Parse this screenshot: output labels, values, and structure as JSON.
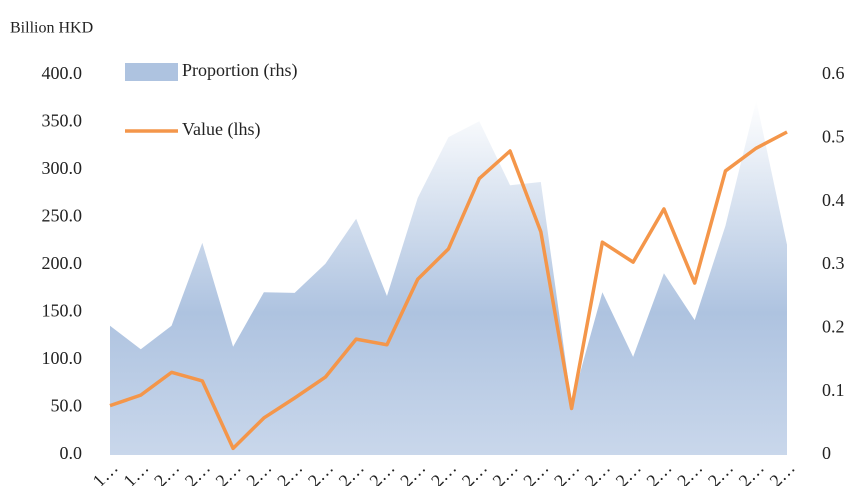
{
  "chart_data": {
    "type": "area_line",
    "ylabel": "Billion HKD",
    "categories": [
      "1…",
      "1…",
      "2…",
      "2…",
      "2…",
      "2…",
      "2…",
      "2…",
      "2…",
      "2…",
      "2…",
      "2…",
      "2…",
      "2…",
      "2…",
      "2…",
      "2…",
      "2…",
      "2…",
      "2…",
      "2…",
      "2…",
      "2…"
    ],
    "series": [
      {
        "name": "Proportion (rhs)",
        "kind": "area",
        "axis": "y2",
        "color": "#aec3e0",
        "values": [
          0.204,
          0.167,
          0.204,
          0.335,
          0.171,
          0.257,
          0.256,
          0.302,
          0.373,
          0.251,
          0.406,
          0.502,
          0.527,
          0.426,
          0.431,
          0.081,
          0.257,
          0.155,
          0.287,
          0.213,
          0.362,
          0.56,
          0.332
        ]
      },
      {
        "name": "Value (lhs)",
        "kind": "line",
        "axis": "y",
        "color": "#f4964a",
        "values": [
          52,
          63,
          87,
          78,
          7,
          39,
          60,
          82,
          122,
          116,
          185,
          217,
          291,
          320,
          235,
          49,
          224,
          203,
          259,
          181,
          299,
          323,
          340
        ]
      }
    ],
    "ylim": [
      0,
      400
    ],
    "yticks": [
      {
        "value": 0,
        "label": "0.0"
      },
      {
        "value": 50,
        "label": "50.0"
      },
      {
        "value": 100,
        "label": "100.0"
      },
      {
        "value": 150,
        "label": "150.0"
      },
      {
        "value": 200,
        "label": "200.0"
      },
      {
        "value": 250,
        "label": "250.0"
      },
      {
        "value": 300,
        "label": "300.0"
      },
      {
        "value": 350,
        "label": "350.0"
      },
      {
        "value": 400,
        "label": "400.0"
      }
    ],
    "y2lim": [
      0,
      0.6
    ],
    "y2ticks": [
      0,
      0.1,
      0.2,
      0.3,
      0.4,
      0.5,
      0.6
    ],
    "legend": "upper left",
    "grid": false
  }
}
